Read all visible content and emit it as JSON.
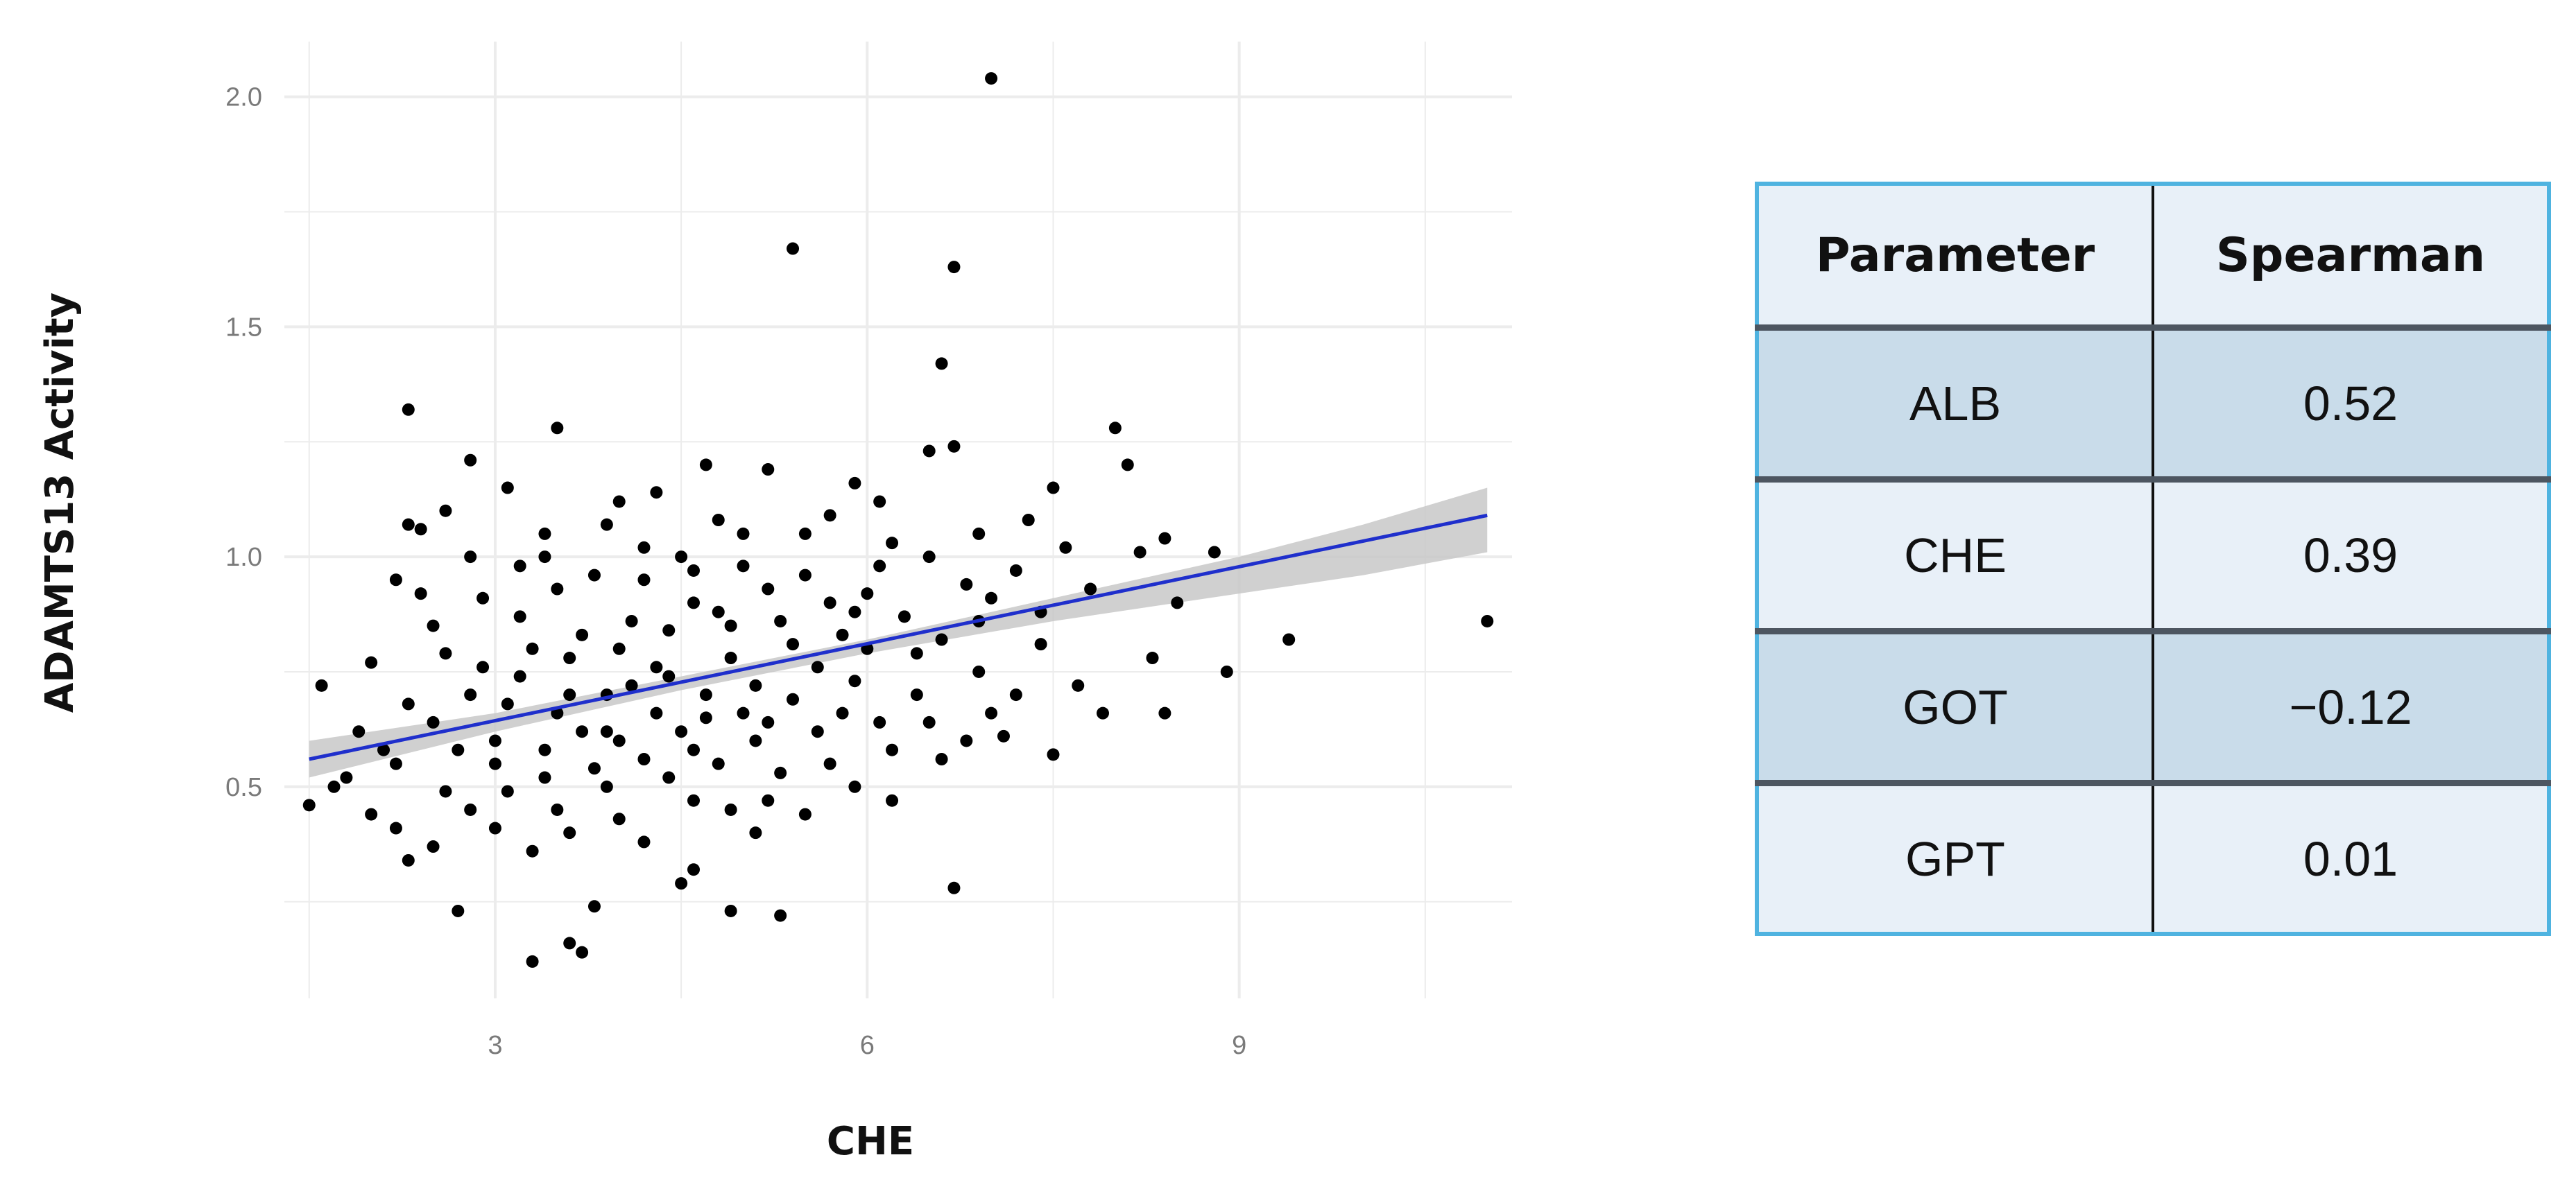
{
  "chart_data": {
    "type": "scatter",
    "xlabel": "CHE",
    "ylabel": "ADAMTS13 Activity",
    "xlim": [
      1.3,
      11.2
    ],
    "ylim": [
      0.04,
      2.12
    ],
    "xticks": [
      3,
      6,
      9
    ],
    "yticks": [
      0.5,
      1.0,
      1.5,
      2.0
    ],
    "ytick_labels": [
      "0.5",
      "1.0",
      "1.5",
      "2.0"
    ],
    "grid": true,
    "colors": {
      "points": "#000000",
      "fit_line": "#1f2fcc",
      "confidence_band": "#c8c8c8",
      "grid": "#ececec"
    },
    "fit_line": {
      "x": [
        1.5,
        11.0
      ],
      "y": [
        0.56,
        1.09
      ]
    },
    "confidence_band": {
      "x": [
        1.5,
        3.0,
        4.5,
        6.0,
        7.5,
        9.0,
        10.0,
        11.0
      ],
      "lower": [
        0.52,
        0.62,
        0.71,
        0.79,
        0.86,
        0.92,
        0.96,
        1.01
      ],
      "upper": [
        0.6,
        0.66,
        0.74,
        0.82,
        0.91,
        1.0,
        1.07,
        1.15
      ]
    },
    "points": [
      [
        7.0,
        2.04
      ],
      [
        5.4,
        1.67
      ],
      [
        6.7,
        1.63
      ],
      [
        6.6,
        1.42
      ],
      [
        2.3,
        1.32
      ],
      [
        3.5,
        1.28
      ],
      [
        8.0,
        1.28
      ],
      [
        2.8,
        1.21
      ],
      [
        6.5,
        1.23
      ],
      [
        6.7,
        1.24
      ],
      [
        8.1,
        1.2
      ],
      [
        5.2,
        1.19
      ],
      [
        7.5,
        1.15
      ],
      [
        3.1,
        1.15
      ],
      [
        4.3,
        1.14
      ],
      [
        5.9,
        1.16
      ],
      [
        2.6,
        1.1
      ],
      [
        2.3,
        1.07
      ],
      [
        4.7,
        1.2
      ],
      [
        6.1,
        1.12
      ],
      [
        5.7,
        1.09
      ],
      [
        6.9,
        1.05
      ],
      [
        7.3,
        1.08
      ],
      [
        8.4,
        1.04
      ],
      [
        2.4,
        1.06
      ],
      [
        3.4,
        1.05
      ],
      [
        2.2,
        0.95
      ],
      [
        2.8,
        1.0
      ],
      [
        3.2,
        0.98
      ],
      [
        4.2,
        1.02
      ],
      [
        5.0,
        1.05
      ],
      [
        6.2,
        1.03
      ],
      [
        7.6,
        1.02
      ],
      [
        8.2,
        1.01
      ],
      [
        8.8,
        1.01
      ],
      [
        7.2,
        0.97
      ],
      [
        6.5,
        1.0
      ],
      [
        5.5,
        0.96
      ],
      [
        4.6,
        0.97
      ],
      [
        3.8,
        0.96
      ],
      [
        2.9,
        0.91
      ],
      [
        2.5,
        0.85
      ],
      [
        7.8,
        0.93
      ],
      [
        8.5,
        0.9
      ],
      [
        7.4,
        0.88
      ],
      [
        6.8,
        0.94
      ],
      [
        1.6,
        0.72
      ],
      [
        2.0,
        0.77
      ],
      [
        2.3,
        0.68
      ],
      [
        1.9,
        0.62
      ],
      [
        2.1,
        0.58
      ],
      [
        1.5,
        0.46
      ],
      [
        1.7,
        0.5
      ],
      [
        2.6,
        0.49
      ],
      [
        2.8,
        0.45
      ],
      [
        2.2,
        0.41
      ],
      [
        2.5,
        0.37
      ],
      [
        2.3,
        0.34
      ],
      [
        3.0,
        0.41
      ],
      [
        3.3,
        0.36
      ],
      [
        3.6,
        0.4
      ],
      [
        4.2,
        0.38
      ],
      [
        4.6,
        0.32
      ],
      [
        4.9,
        0.45
      ],
      [
        5.1,
        0.4
      ],
      [
        5.5,
        0.44
      ],
      [
        5.9,
        0.5
      ],
      [
        6.2,
        0.47
      ],
      [
        6.6,
        0.56
      ],
      [
        7.1,
        0.61
      ],
      [
        7.5,
        0.57
      ],
      [
        6.7,
        0.28
      ],
      [
        4.5,
        0.29
      ],
      [
        5.3,
        0.22
      ],
      [
        4.9,
        0.23
      ],
      [
        3.8,
        0.24
      ],
      [
        2.7,
        0.23
      ],
      [
        3.6,
        0.16
      ],
      [
        3.7,
        0.14
      ],
      [
        3.3,
        0.12
      ],
      [
        9.4,
        0.82
      ],
      [
        11.0,
        0.86
      ],
      [
        8.9,
        0.75
      ],
      [
        8.4,
        0.66
      ],
      [
        7.9,
        0.66
      ],
      [
        8.3,
        0.78
      ],
      [
        7.7,
        0.72
      ],
      [
        7.2,
        0.7
      ],
      [
        6.9,
        0.75
      ],
      [
        6.4,
        0.79
      ],
      [
        5.8,
        0.83
      ],
      [
        5.3,
        0.86
      ],
      [
        4.8,
        0.88
      ],
      [
        4.4,
        0.84
      ],
      [
        4.0,
        0.8
      ],
      [
        3.6,
        0.78
      ],
      [
        3.2,
        0.74
      ],
      [
        2.8,
        0.7
      ],
      [
        2.5,
        0.64
      ],
      [
        3.0,
        0.6
      ],
      [
        3.4,
        0.58
      ],
      [
        3.9,
        0.62
      ],
      [
        4.3,
        0.66
      ],
      [
        4.7,
        0.7
      ],
      [
        5.1,
        0.72
      ],
      [
        5.6,
        0.76
      ],
      [
        6.0,
        0.8
      ],
      [
        6.3,
        0.87
      ],
      [
        5.7,
        0.9
      ],
      [
        5.2,
        0.93
      ],
      [
        4.6,
        0.9
      ],
      [
        4.1,
        0.86
      ],
      [
        3.7,
        0.83
      ],
      [
        3.3,
        0.8
      ],
      [
        2.9,
        0.76
      ],
      [
        3.1,
        0.68
      ],
      [
        3.5,
        0.66
      ],
      [
        3.9,
        0.7
      ],
      [
        4.4,
        0.74
      ],
      [
        4.9,
        0.78
      ],
      [
        5.4,
        0.81
      ],
      [
        5.9,
        0.73
      ],
      [
        6.4,
        0.7
      ],
      [
        6.1,
        0.64
      ],
      [
        5.6,
        0.62
      ],
      [
        5.1,
        0.6
      ],
      [
        4.6,
        0.58
      ],
      [
        4.2,
        0.56
      ],
      [
        3.8,
        0.54
      ],
      [
        3.4,
        0.52
      ],
      [
        3.0,
        0.55
      ],
      [
        2.7,
        0.58
      ],
      [
        4.0,
        0.6
      ],
      [
        4.5,
        0.62
      ],
      [
        5.0,
        0.66
      ],
      [
        5.4,
        0.69
      ],
      [
        4.8,
        0.55
      ],
      [
        4.4,
        0.52
      ],
      [
        3.9,
        0.5
      ],
      [
        4.7,
        0.65
      ],
      [
        4.1,
        0.72
      ],
      [
        3.6,
        0.7
      ],
      [
        5.8,
        0.66
      ],
      [
        6.6,
        0.82
      ],
      [
        6.0,
        0.92
      ],
      [
        5.0,
        0.98
      ],
      [
        4.5,
        1.0
      ],
      [
        3.9,
        1.07
      ],
      [
        3.5,
        0.93
      ],
      [
        2.6,
        0.79
      ],
      [
        2.2,
        0.55
      ],
      [
        1.8,
        0.52
      ],
      [
        2.0,
        0.44
      ],
      [
        3.1,
        0.49
      ],
      [
        3.5,
        0.45
      ],
      [
        4.0,
        0.43
      ],
      [
        5.3,
        0.53
      ],
      [
        5.7,
        0.55
      ],
      [
        6.2,
        0.58
      ],
      [
        6.8,
        0.6
      ],
      [
        7.0,
        0.66
      ],
      [
        6.5,
        0.64
      ],
      [
        5.2,
        0.64
      ],
      [
        4.3,
        0.76
      ],
      [
        3.2,
        0.87
      ],
      [
        2.4,
        0.92
      ],
      [
        6.9,
        0.86
      ],
      [
        7.4,
        0.81
      ],
      [
        7.0,
        0.91
      ],
      [
        6.1,
        0.98
      ],
      [
        5.5,
        1.05
      ],
      [
        4.8,
        1.08
      ],
      [
        4.0,
        1.12
      ],
      [
        3.4,
        1.0
      ],
      [
        5.9,
        0.88
      ],
      [
        4.2,
        0.95
      ],
      [
        4.9,
        0.85
      ],
      [
        3.7,
        0.62
      ],
      [
        4.6,
        0.47
      ],
      [
        5.2,
        0.47
      ]
    ]
  },
  "table": {
    "headers": [
      "Parameter",
      "Spearman"
    ],
    "rows": [
      [
        "ALB",
        "0.52"
      ],
      [
        "CHE",
        "0.39"
      ],
      [
        "GOT",
        "−0.12"
      ],
      [
        "GPT",
        "0.01"
      ]
    ]
  }
}
